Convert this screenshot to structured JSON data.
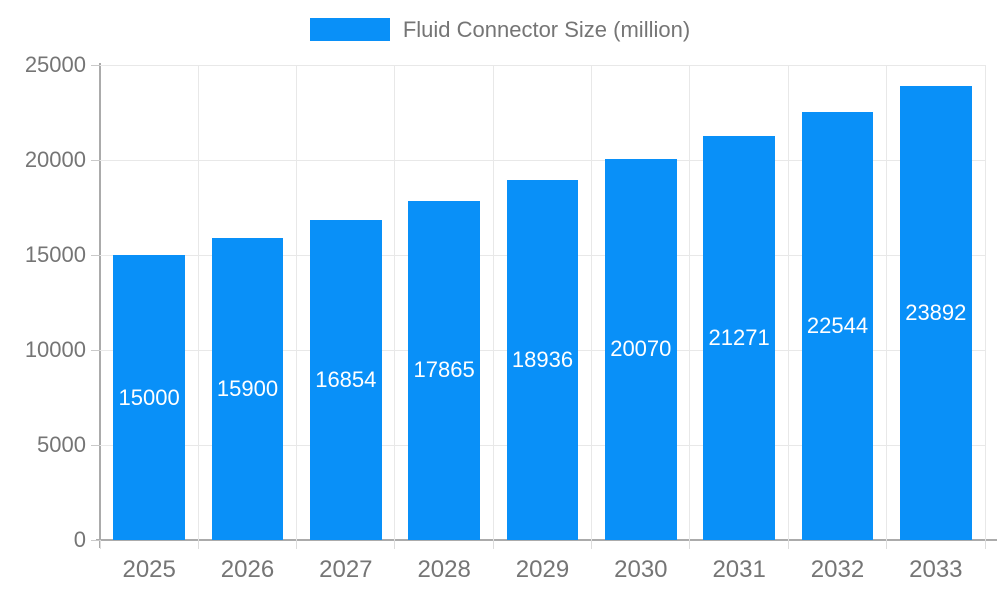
{
  "chart_data": {
    "type": "bar",
    "title": "Fluid Connector Size (million)",
    "series_name": "Fluid Connector Size (million)",
    "categories": [
      "2025",
      "2026",
      "2027",
      "2028",
      "2029",
      "2030",
      "2031",
      "2032",
      "2033"
    ],
    "values": [
      15000,
      15900,
      16854,
      17865,
      18936,
      20070,
      21271,
      22544,
      23892
    ],
    "xlabel": "",
    "ylabel": "",
    "ylim": [
      0,
      25000
    ],
    "yticks": [
      0,
      5000,
      10000,
      15000,
      20000,
      25000
    ],
    "grid": true,
    "legend_position": "top",
    "value_label_position": "inside-center",
    "colors": {
      "bar": "#0990f8",
      "grid": "#e8e8e8",
      "axis": "#ababab",
      "axis_text": "#757575",
      "value_text": "#ffffff",
      "background": "#ffffff"
    }
  }
}
